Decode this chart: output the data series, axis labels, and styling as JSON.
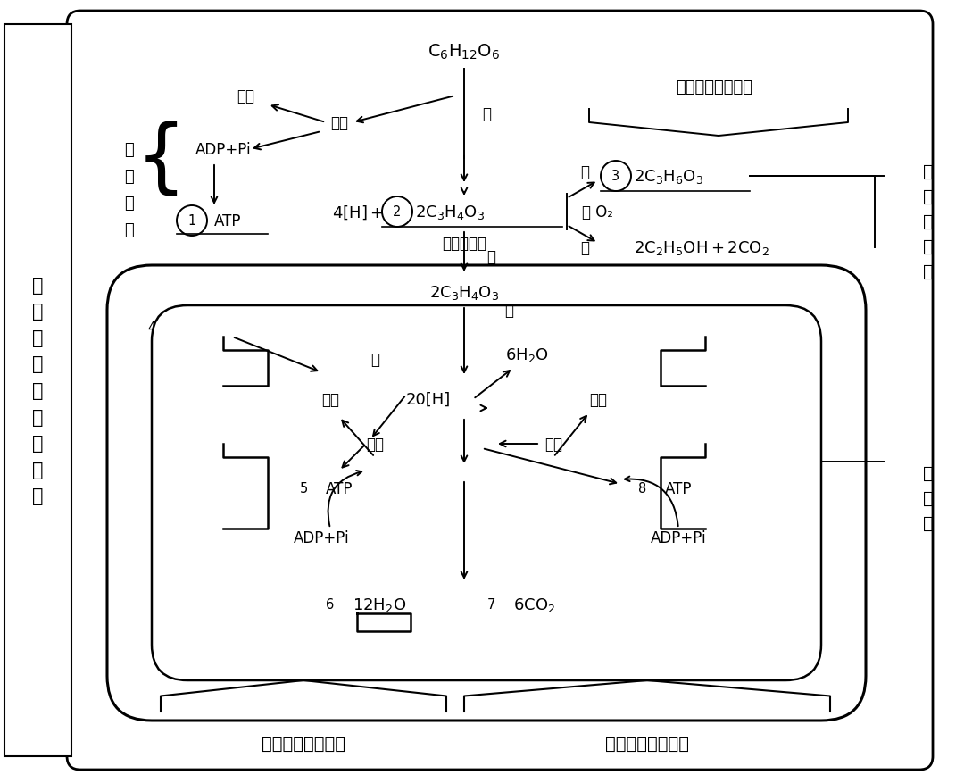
{
  "bg_color": "#ffffff",
  "text_color": "#000000",
  "title_vertical": "细\n胞\n呼\n吸\n的\n过\n程\n图\n示",
  "label_right_top": "细\n胞\n质\n基\n质",
  "label_right_bottom": "线\n粒\n体",
  "label_stage1_chars": [
    "第",
    "一",
    "阶",
    "段"
  ],
  "label_anaerobic": "无氧呼吸第二阶段",
  "label_aerobic3": "有氧呼吸第三阶段",
  "label_aerobic2": "有氧呼吸第二阶段",
  "font_zh": "Noto Sans CJK SC",
  "font_fallback": "Arial Unicode MS"
}
